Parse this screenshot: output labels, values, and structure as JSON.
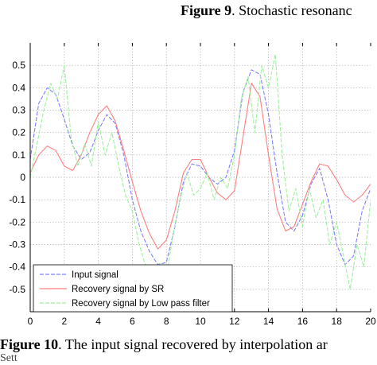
{
  "caption_top": {
    "label": "Figure 9",
    "text": ". Stochastic resonanc"
  },
  "caption_bottom": {
    "label": "Figure 10",
    "text": ". The input signal recovered by interpolation ar",
    "tail": "Sett"
  },
  "chart_data": {
    "type": "line",
    "title": "",
    "xlabel": "",
    "ylabel": "",
    "xlim": [
      0,
      20
    ],
    "ylim": [
      -0.6,
      0.6
    ],
    "grid": true,
    "legend_position": "bottom-left",
    "x_ticks": [
      0,
      2,
      4,
      6,
      8,
      10,
      12,
      14,
      16,
      18,
      20
    ],
    "x_tick_labels": [
      "0",
      "2",
      "4",
      "6",
      "8",
      "10",
      "12",
      "14",
      "16",
      "18",
      "20"
    ],
    "y_ticks": [
      0.5,
      0.4,
      0.3,
      0.2,
      0.1,
      0,
      -0.1,
      -0.2,
      -0.3,
      -0.4,
      -0.5
    ],
    "y_tick_labels": [
      "0.5",
      "0.4",
      "0.3",
      "0.2",
      "0.1",
      "0",
      "-0.1",
      "-0.2",
      "-0.3",
      "-0.4",
      "-0.5"
    ],
    "series": [
      {
        "name": "Input signal",
        "color": "#7f7fff",
        "dash": "5,2",
        "x": [
          0,
          0.5,
          1,
          1.5,
          2,
          2.5,
          3,
          3.5,
          4,
          4.5,
          5,
          5.5,
          6,
          6.5,
          7,
          7.5,
          8,
          8.5,
          9,
          9.5,
          10,
          10.5,
          11,
          11.5,
          12,
          12.5,
          13,
          13.5,
          14,
          14.5,
          15,
          15.5,
          16,
          16.5,
          17,
          17.5,
          18,
          18.5,
          19,
          19.5,
          20
        ],
        "y": [
          0.08,
          0.33,
          0.4,
          0.37,
          0.26,
          0.14,
          0.08,
          0.11,
          0.21,
          0.28,
          0.24,
          0.1,
          -0.1,
          -0.24,
          -0.33,
          -0.39,
          -0.38,
          -0.22,
          -0.02,
          0.06,
          0.05,
          0.0,
          -0.03,
          0.0,
          0.12,
          0.38,
          0.48,
          0.46,
          0.28,
          0.02,
          -0.2,
          -0.24,
          -0.17,
          -0.03,
          0.04,
          -0.1,
          -0.3,
          -0.39,
          -0.35,
          -0.15,
          -0.05
        ]
      },
      {
        "name": "Recovery signal by SR",
        "color": "#ff7f7f",
        "dash": "",
        "x": [
          0,
          0.5,
          1,
          1.5,
          2,
          2.5,
          3,
          3.5,
          4,
          4.5,
          5,
          5.5,
          6,
          6.5,
          7,
          7.5,
          8,
          8.5,
          9,
          9.5,
          10,
          10.5,
          11,
          11.5,
          12,
          12.5,
          13,
          13.5,
          14,
          14.5,
          15,
          15.5,
          16,
          16.5,
          17,
          17.5,
          18,
          18.5,
          19,
          19.5,
          20
        ],
        "y": [
          0.02,
          0.1,
          0.14,
          0.12,
          0.05,
          0.03,
          0.1,
          0.2,
          0.28,
          0.32,
          0.25,
          0.12,
          -0.02,
          -0.15,
          -0.25,
          -0.32,
          -0.28,
          -0.15,
          0.02,
          0.08,
          0.08,
          0.0,
          -0.07,
          -0.1,
          -0.06,
          0.18,
          0.42,
          0.36,
          0.1,
          -0.14,
          -0.24,
          -0.22,
          -0.12,
          -0.02,
          0.06,
          0.05,
          -0.01,
          -0.08,
          -0.11,
          -0.08,
          -0.03
        ]
      },
      {
        "name": "Recovery signal by Low pass filter",
        "color": "#9fef9f",
        "dash": "5,2",
        "x": [
          0,
          0.4,
          0.8,
          1.2,
          1.6,
          2,
          2.4,
          2.8,
          3.2,
          3.6,
          4,
          4.4,
          4.8,
          5.2,
          5.6,
          6,
          6.4,
          6.8,
          7.2,
          7.6,
          8,
          8.4,
          8.8,
          9.2,
          9.6,
          10,
          10.4,
          10.8,
          11.2,
          11.6,
          12,
          12.4,
          12.8,
          13.2,
          13.6,
          14,
          14.4,
          14.8,
          15.2,
          15.6,
          16,
          16.4,
          16.8,
          17.2,
          17.6,
          18,
          18.4,
          18.8,
          19.2,
          19.6,
          20
        ],
        "y": [
          0.0,
          0.15,
          0.3,
          0.42,
          0.35,
          0.5,
          0.18,
          0.05,
          0.15,
          0.05,
          0.25,
          0.1,
          0.2,
          0.05,
          -0.08,
          -0.15,
          -0.3,
          -0.4,
          -0.5,
          -0.38,
          -0.45,
          -0.25,
          -0.1,
          0.02,
          -0.08,
          -0.05,
          0.02,
          -0.1,
          0.0,
          -0.05,
          0.1,
          0.35,
          0.45,
          0.2,
          0.5,
          0.4,
          0.55,
          0.1,
          -0.15,
          -0.05,
          -0.22,
          -0.05,
          -0.18,
          -0.1,
          -0.3,
          -0.2,
          -0.35,
          -0.5,
          -0.3,
          -0.4,
          -0.1
        ]
      }
    ]
  }
}
